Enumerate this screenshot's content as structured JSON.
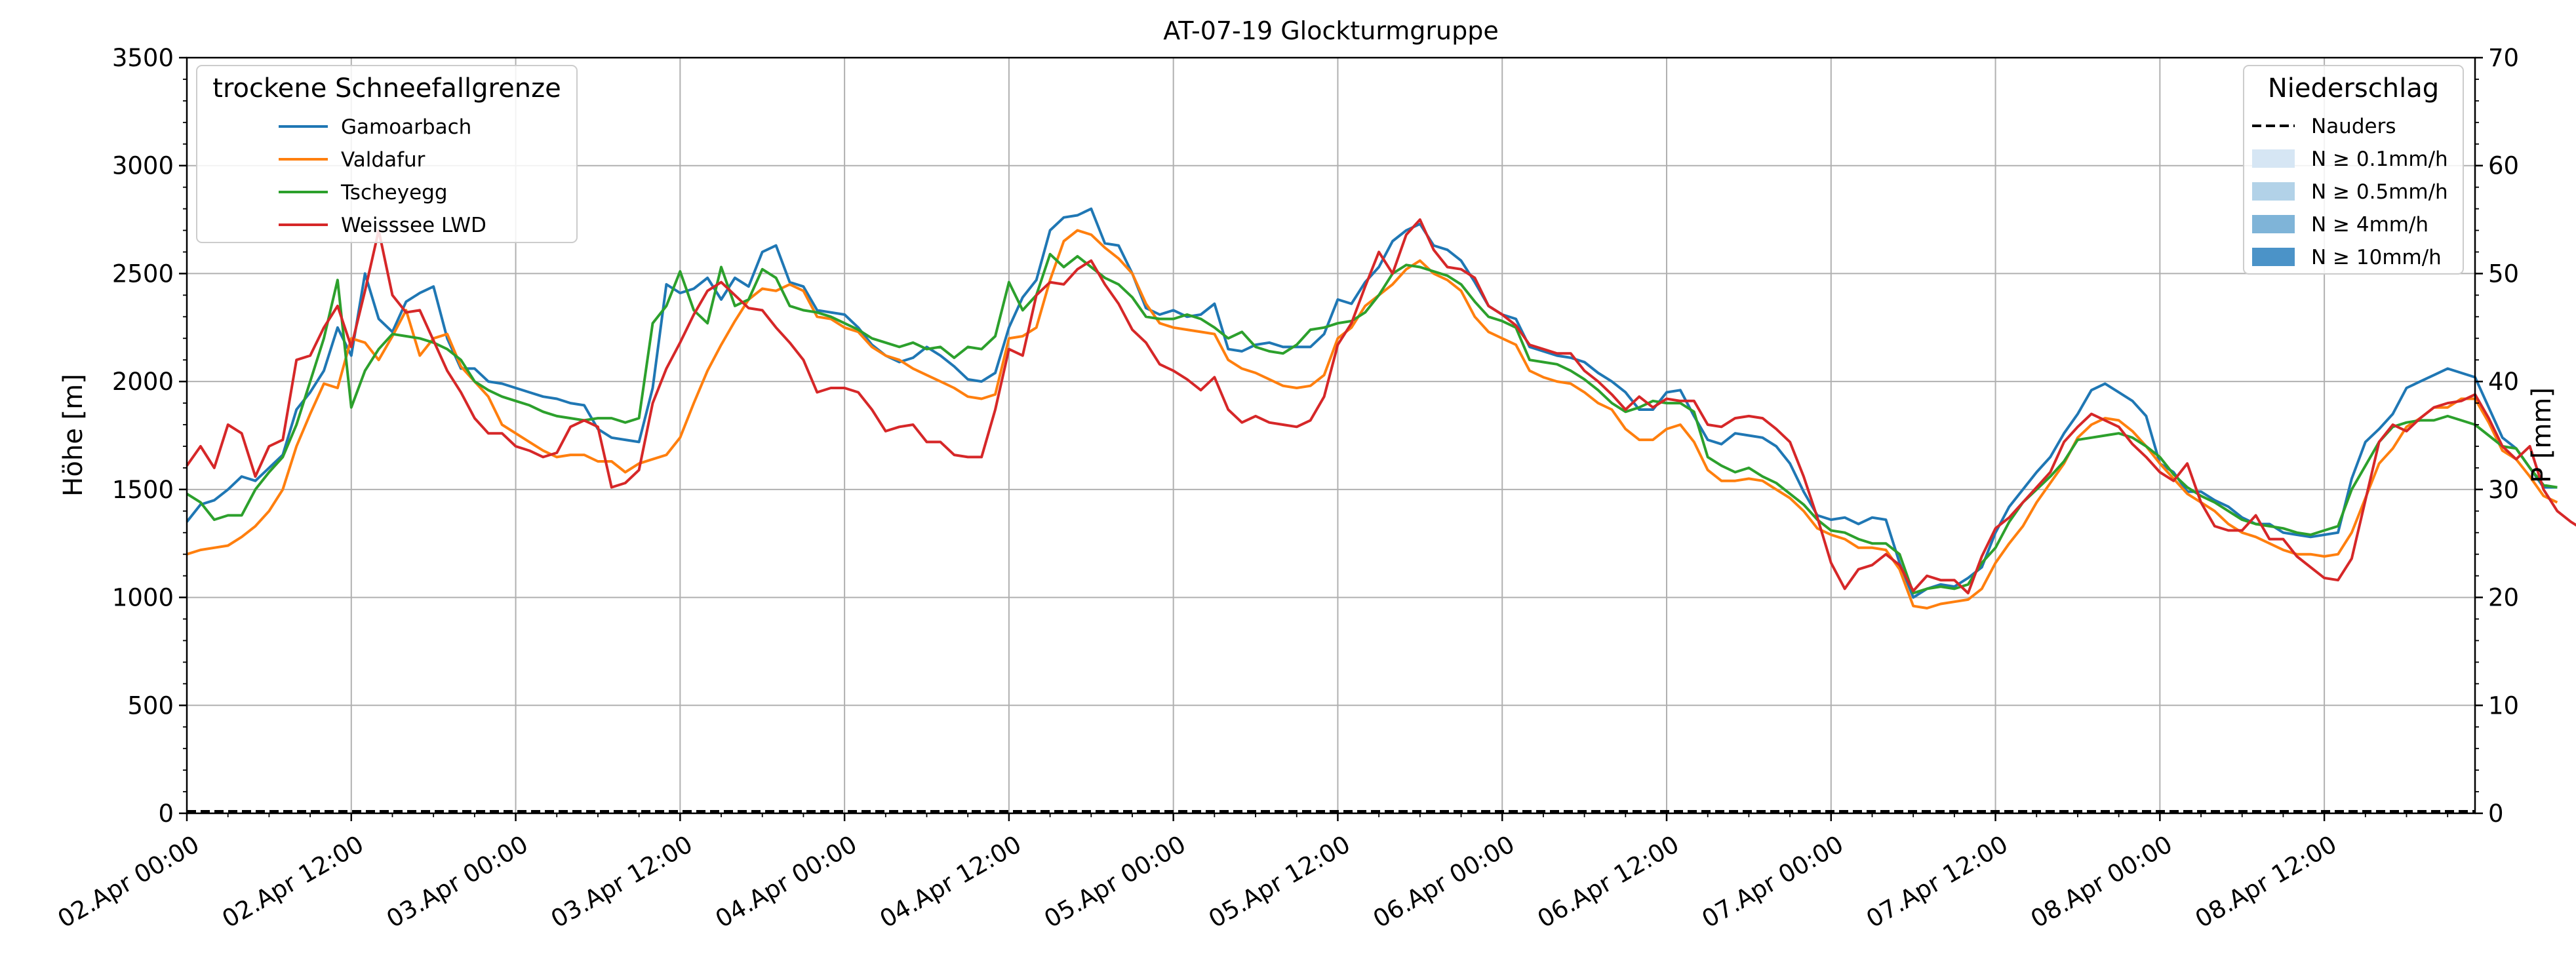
{
  "chart_data": {
    "type": "line",
    "title": "AT-07-19 Glockturmgruppe",
    "ylabel": "Höhe [m]",
    "y2label": "P [mm]",
    "ylim": [
      0,
      3500
    ],
    "y2lim": [
      0,
      70
    ],
    "yticks": [
      "0",
      "500",
      "1000",
      "1500",
      "2000",
      "2500",
      "3000",
      "3500"
    ],
    "y2ticks": [
      "0",
      "10",
      "20",
      "30",
      "40",
      "50",
      "60",
      "70"
    ],
    "x_start": "02.Apr 00:00",
    "x_step_hours": 1,
    "xlim_hours": [
      0,
      167
    ],
    "xticks": [
      "02.Apr 00:00",
      "02.Apr 12:00",
      "03.Apr 00:00",
      "03.Apr 12:00",
      "04.Apr 00:00",
      "04.Apr 12:00",
      "05.Apr 00:00",
      "05.Apr 12:00",
      "06.Apr 00:00",
      "06.Apr 12:00",
      "07.Apr 00:00",
      "07.Apr 12:00",
      "08.Apr 00:00",
      "08.Apr 12:00"
    ],
    "grid": true,
    "legend_left": {
      "title": "trockene Schneefallgrenze",
      "placement": "top-left"
    },
    "legend_right": {
      "title": "Niederschlag",
      "placement": "top-right",
      "entries": [
        {
          "label": "Nauders",
          "style": "dashed",
          "color": "#000000"
        },
        {
          "label": "N ≥ 0.1mm/h",
          "style": "patch",
          "color": "#d6e6f4"
        },
        {
          "label": "N ≥ 0.5mm/h",
          "style": "patch",
          "color": "#b2d2e8"
        },
        {
          "label": "N ≥ 4mm/h",
          "style": "patch",
          "color": "#7fb4d8"
        },
        {
          "label": "N ≥ 10mm/h",
          "style": "patch",
          "color": "#4b93c8"
        }
      ]
    },
    "precipitation": {
      "name": "Nauders",
      "values_mm": [
        0,
        0
      ]
    },
    "series": [
      {
        "name": "Gamoarbach",
        "color": "#1f77b4",
        "values": [
          1350,
          1430,
          1450,
          1500,
          1560,
          1540,
          1600,
          1660,
          1870,
          1950,
          2050,
          2250,
          2120,
          2500,
          2290,
          2230,
          2370,
          2410,
          2440,
          2200,
          2060,
          2060,
          2000,
          1990,
          1970,
          1950,
          1930,
          1920,
          1900,
          1890,
          1780,
          1740,
          1730,
          1720,
          1970,
          2450,
          2410,
          2430,
          2480,
          2380,
          2480,
          2440,
          2600,
          2630,
          2460,
          2440,
          2330,
          2320,
          2310,
          2250,
          2170,
          2120,
          2090,
          2110,
          2160,
          2120,
          2070,
          2010,
          2000,
          2040,
          2250,
          2390,
          2470,
          2700,
          2760,
          2770,
          2800,
          2640,
          2630,
          2500,
          2340,
          2310,
          2330,
          2300,
          2310,
          2360,
          2150,
          2140,
          2170,
          2180,
          2160,
          2160,
          2160,
          2220,
          2380,
          2360,
          2460,
          2530,
          2650,
          2700,
          2730,
          2630,
          2610,
          2560,
          2460,
          2350,
          2310,
          2290,
          2160,
          2140,
          2120,
          2110,
          2090,
          2040,
          2000,
          1950,
          1870,
          1870,
          1950,
          1960,
          1840,
          1730,
          1710,
          1760,
          1750,
          1740,
          1700,
          1620,
          1490,
          1380,
          1360,
          1370,
          1340,
          1370,
          1360,
          1160,
          1000,
          1040,
          1060,
          1050,
          1090,
          1140,
          1300,
          1420,
          1500,
          1580,
          1650,
          1760,
          1850,
          1960,
          1990,
          1950,
          1910,
          1840,
          1620,
          1580,
          1490,
          1490,
          1450,
          1420,
          1370,
          1340,
          1340,
          1300,
          1290,
          1280,
          1290,
          1300,
          1550,
          1720,
          1780,
          1850,
          1970,
          2000,
          2030,
          2060,
          2040,
          2020,
          1880,
          1740,
          1690,
          1600,
          1510,
          1510
        ]
      },
      {
        "name": "Valdafur",
        "color": "#ff7f0e",
        "values": [
          1200,
          1220,
          1230,
          1240,
          1280,
          1330,
          1400,
          1500,
          1700,
          1850,
          1990,
          1970,
          2200,
          2180,
          2100,
          2210,
          2330,
          2120,
          2200,
          2220,
          2070,
          2000,
          1930,
          1800,
          1760,
          1720,
          1680,
          1650,
          1660,
          1660,
          1630,
          1630,
          1580,
          1620,
          1640,
          1660,
          1740,
          1900,
          2050,
          2170,
          2280,
          2380,
          2430,
          2420,
          2450,
          2420,
          2300,
          2290,
          2250,
          2230,
          2160,
          2120,
          2100,
          2060,
          2030,
          2000,
          1970,
          1930,
          1920,
          1940,
          2200,
          2210,
          2250,
          2470,
          2650,
          2700,
          2680,
          2620,
          2570,
          2500,
          2360,
          2270,
          2250,
          2240,
          2230,
          2220,
          2100,
          2060,
          2040,
          2010,
          1980,
          1970,
          1980,
          2030,
          2200,
          2250,
          2350,
          2400,
          2450,
          2520,
          2560,
          2500,
          2470,
          2420,
          2300,
          2230,
          2200,
          2170,
          2050,
          2020,
          2000,
          1990,
          1950,
          1900,
          1870,
          1780,
          1730,
          1730,
          1780,
          1800,
          1720,
          1590,
          1540,
          1540,
          1550,
          1540,
          1500,
          1460,
          1400,
          1320,
          1290,
          1270,
          1230,
          1230,
          1220,
          1130,
          960,
          950,
          970,
          980,
          990,
          1040,
          1160,
          1250,
          1330,
          1440,
          1530,
          1620,
          1740,
          1800,
          1830,
          1820,
          1770,
          1700,
          1620,
          1550,
          1480,
          1440,
          1400,
          1340,
          1300,
          1280,
          1250,
          1220,
          1200,
          1200,
          1190,
          1200,
          1300,
          1460,
          1620,
          1690,
          1790,
          1830,
          1880,
          1880,
          1920,
          1920,
          1810,
          1680,
          1640,
          1560,
          1470,
          1440
        ]
      },
      {
        "name": "Tscheyegg",
        "color": "#2ca02c",
        "values": [
          1480,
          1440,
          1360,
          1380,
          1380,
          1500,
          1580,
          1650,
          1800,
          2000,
          2200,
          2470,
          1880,
          2050,
          2150,
          2220,
          2210,
          2200,
          2180,
          2150,
          2100,
          2000,
          1960,
          1930,
          1910,
          1890,
          1860,
          1840,
          1830,
          1820,
          1830,
          1830,
          1810,
          1830,
          2270,
          2350,
          2510,
          2330,
          2270,
          2530,
          2350,
          2380,
          2520,
          2480,
          2350,
          2330,
          2320,
          2300,
          2270,
          2240,
          2200,
          2180,
          2160,
          2180,
          2150,
          2160,
          2110,
          2160,
          2150,
          2210,
          2460,
          2330,
          2400,
          2590,
          2530,
          2580,
          2530,
          2480,
          2450,
          2390,
          2300,
          2290,
          2290,
          2310,
          2290,
          2250,
          2200,
          2230,
          2160,
          2140,
          2130,
          2170,
          2240,
          2250,
          2270,
          2280,
          2320,
          2400,
          2500,
          2540,
          2530,
          2510,
          2490,
          2450,
          2370,
          2300,
          2280,
          2250,
          2100,
          2090,
          2080,
          2050,
          2010,
          1960,
          1900,
          1860,
          1880,
          1910,
          1900,
          1900,
          1860,
          1650,
          1610,
          1580,
          1600,
          1560,
          1530,
          1480,
          1430,
          1360,
          1310,
          1300,
          1270,
          1250,
          1250,
          1200,
          1020,
          1040,
          1050,
          1040,
          1060,
          1160,
          1230,
          1350,
          1440,
          1500,
          1560,
          1630,
          1730,
          1740,
          1750,
          1760,
          1740,
          1700,
          1650,
          1570,
          1510,
          1470,
          1440,
          1400,
          1360,
          1340,
          1330,
          1320,
          1300,
          1290,
          1310,
          1330,
          1500,
          1610,
          1720,
          1790,
          1810,
          1820,
          1820,
          1840,
          1820,
          1800,
          1750,
          1700,
          1690,
          1600,
          1520,
          1510
        ]
      },
      {
        "name": "Weisssee LWD",
        "color": "#d62728",
        "values": [
          1610,
          1700,
          1600,
          1800,
          1760,
          1560,
          1700,
          1730,
          2100,
          2120,
          2250,
          2350,
          2160,
          2420,
          2700,
          2400,
          2320,
          2330,
          2190,
          2050,
          1950,
          1830,
          1760,
          1760,
          1700,
          1680,
          1650,
          1670,
          1790,
          1820,
          1790,
          1510,
          1530,
          1590,
          1900,
          2060,
          2180,
          2310,
          2420,
          2460,
          2400,
          2340,
          2330,
          2250,
          2180,
          2100,
          1950,
          1970,
          1970,
          1950,
          1870,
          1770,
          1790,
          1800,
          1720,
          1720,
          1660,
          1650,
          1650,
          1870,
          2150,
          2120,
          2400,
          2460,
          2450,
          2520,
          2560,
          2450,
          2360,
          2240,
          2180,
          2080,
          2050,
          2010,
          1960,
          2020,
          1870,
          1810,
          1840,
          1810,
          1800,
          1790,
          1820,
          1930,
          2170,
          2270,
          2440,
          2600,
          2500,
          2680,
          2750,
          2610,
          2530,
          2520,
          2480,
          2350,
          2310,
          2260,
          2170,
          2150,
          2130,
          2130,
          2050,
          2000,
          1940,
          1870,
          1930,
          1880,
          1920,
          1910,
          1910,
          1800,
          1790,
          1830,
          1840,
          1830,
          1780,
          1720,
          1560,
          1370,
          1160,
          1040,
          1130,
          1150,
          1200,
          1150,
          1030,
          1100,
          1080,
          1080,
          1020,
          1190,
          1320,
          1370,
          1440,
          1510,
          1580,
          1720,
          1790,
          1850,
          1820,
          1790,
          1710,
          1650,
          1580,
          1540,
          1620,
          1440,
          1330,
          1310,
          1310,
          1380,
          1270,
          1270,
          1190,
          1140,
          1090,
          1080,
          1180,
          1450,
          1720,
          1800,
          1770,
          1830,
          1880,
          1900,
          1910,
          1940,
          1830,
          1700,
          1640,
          1700,
          1500,
          1400,
          1350,
          1310
        ]
      }
    ]
  }
}
